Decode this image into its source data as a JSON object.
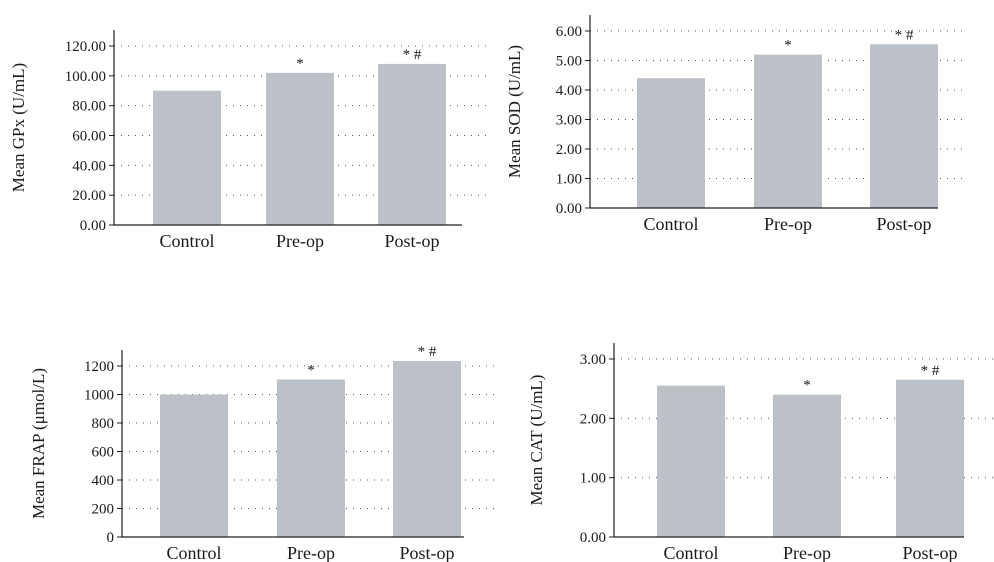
{
  "chart_data": [
    {
      "type": "bar",
      "ylabel": "Mean GPx (U/mL)",
      "categories": [
        "Control",
        "Pre-op",
        "Post-op"
      ],
      "values": [
        90,
        102,
        108
      ],
      "annotations": [
        "",
        "*",
        "*#"
      ],
      "ylim": [
        0,
        120
      ],
      "yticks": [
        "0.00",
        "20.00",
        "40.00",
        "60.00",
        "80.00",
        "100.00",
        "120.00"
      ],
      "grid": "dotted-horizontal",
      "bar_color": "#bcc0c7"
    },
    {
      "type": "bar",
      "ylabel": "Mean SOD (U/mL)",
      "categories": [
        "Control",
        "Pre-op",
        "Post-op"
      ],
      "values": [
        4.4,
        5.2,
        5.55
      ],
      "annotations": [
        "",
        "*",
        "*#"
      ],
      "ylim": [
        0,
        6
      ],
      "yticks": [
        "0.00",
        "1.00",
        "2.00",
        "3.00",
        "4.00",
        "5.00",
        "6.00"
      ],
      "grid": "dotted-horizontal",
      "bar_color": "#bcc0c7"
    },
    {
      "type": "bar",
      "ylabel": "Mean FRAP (μmol/L)",
      "categories": [
        "Control",
        "Pre-op",
        "Post-op"
      ],
      "values": [
        1000,
        1105,
        1235
      ],
      "annotations": [
        "",
        "*",
        "*#"
      ],
      "ylim": [
        0,
        1200
      ],
      "yticks": [
        "0",
        "200",
        "400",
        "600",
        "800",
        "1000",
        "1200"
      ],
      "grid": "dotted-horizontal",
      "bar_color": "#bcc0c7"
    },
    {
      "type": "bar",
      "ylabel": "Mean CAT (U/mL)",
      "categories": [
        "Control",
        "Pre-op",
        "Post-op"
      ],
      "values": [
        2.55,
        2.4,
        2.65
      ],
      "annotations": [
        "",
        "*",
        "*#"
      ],
      "ylim": [
        0,
        3
      ],
      "yticks": [
        "0.00",
        "1.00",
        "2.00",
        "3.00"
      ],
      "grid": "dotted-horizontal",
      "bar_color": "#bcc0c7"
    }
  ]
}
